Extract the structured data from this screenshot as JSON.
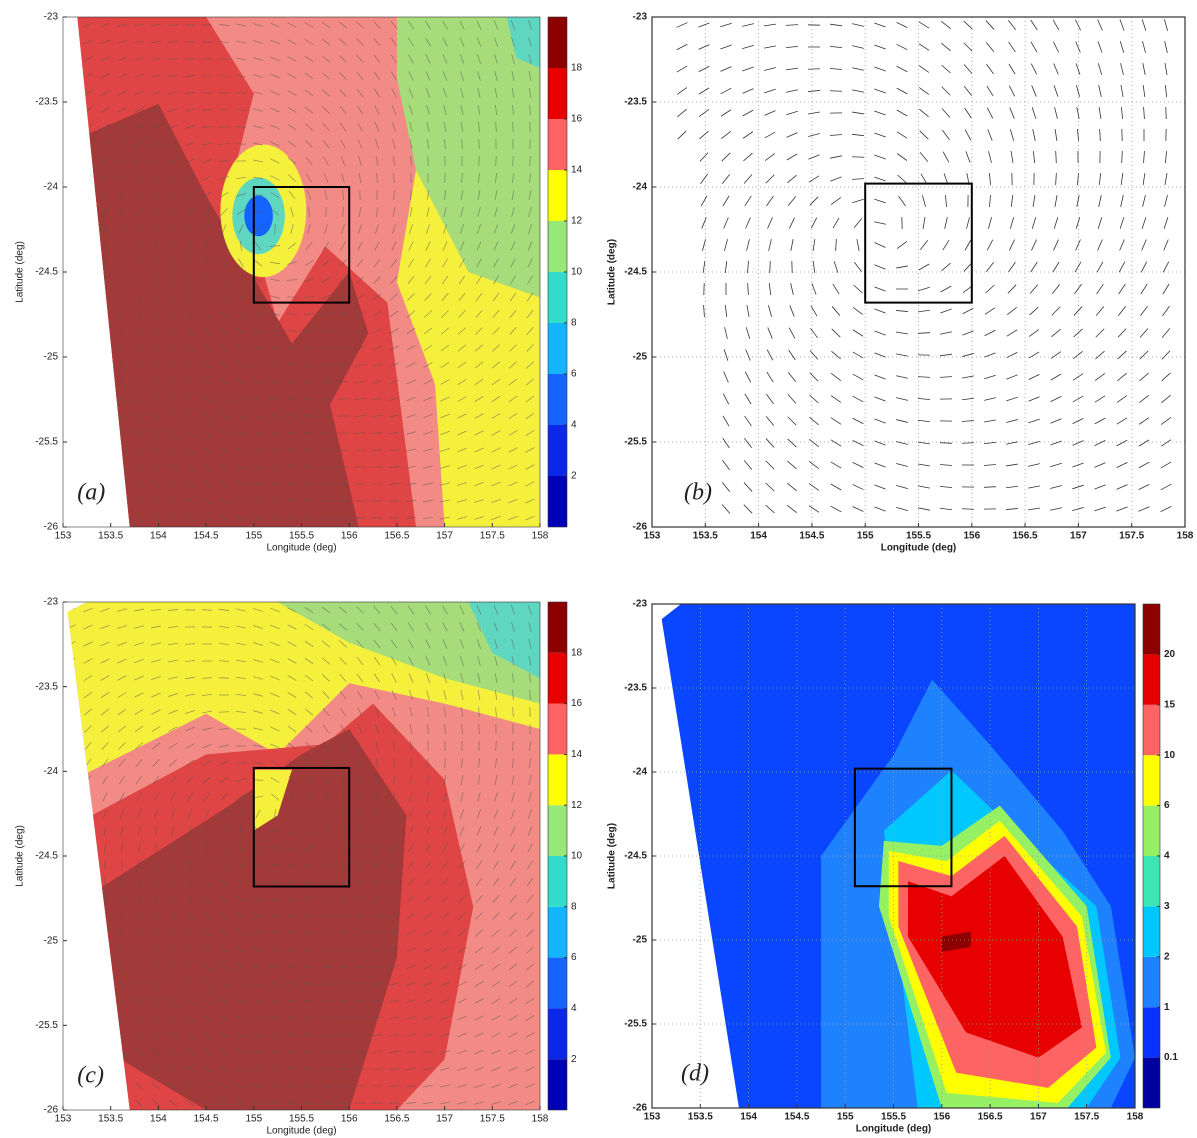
{
  "chart_data": [
    {
      "type": "heatmap-quiver",
      "panel_label": "(a)",
      "xlabel": "Longitude (deg)",
      "ylabel": "Latitude (deg)",
      "xlim": [
        153,
        158
      ],
      "ylim": [
        -26,
        -23
      ],
      "xticks": [
        153,
        153.5,
        154,
        154.5,
        155,
        155.5,
        156,
        156.5,
        157,
        157.5,
        158
      ],
      "yticks": [
        -23,
        -23.5,
        -24,
        -24.5,
        -25,
        -25.5,
        -26
      ],
      "box": {
        "x": [
          155,
          156
        ],
        "y": [
          -24.68,
          -24
        ]
      },
      "colorbar": {
        "lim": [
          0,
          20
        ],
        "ticks": [
          2,
          4,
          6,
          8,
          10,
          12,
          14,
          16,
          18
        ],
        "colors": [
          "#0000b4",
          "#0a28e6",
          "#1464ff",
          "#14b4ff",
          "#32dcc8",
          "#96e678",
          "#ffff00",
          "#ff6464",
          "#e60000",
          "#8c0000"
        ]
      }
    },
    {
      "type": "quiver",
      "panel_label": "(b)",
      "xlabel": "Longitude (deg)",
      "ylabel": "Latitude (deg)",
      "xlim": [
        153,
        158
      ],
      "ylim": [
        -26,
        -23
      ],
      "xticks": [
        153,
        153.5,
        154,
        154.5,
        155,
        155.5,
        156,
        156.5,
        157,
        157.5,
        158
      ],
      "yticks": [
        -23,
        -23.5,
        -24,
        -24.5,
        -25,
        -25.5,
        -26
      ],
      "box": {
        "x": [
          155,
          156
        ],
        "y": [
          -24.68,
          -23.98
        ]
      },
      "grid": true
    },
    {
      "type": "heatmap-quiver",
      "panel_label": "(c)",
      "xlabel": "Longitude (deg)",
      "ylabel": "Latitude (deg)",
      "xlim": [
        153,
        158
      ],
      "ylim": [
        -26,
        -23
      ],
      "xticks": [
        153,
        153.5,
        154,
        154.5,
        155,
        155.5,
        156,
        156.5,
        157,
        157.5,
        158
      ],
      "yticks": [
        -23,
        -23.5,
        -24,
        -24.5,
        -25,
        -25.5,
        -26
      ],
      "box": {
        "x": [
          155,
          156
        ],
        "y": [
          -24.68,
          -23.98
        ]
      },
      "colorbar": {
        "lim": [
          0,
          20
        ],
        "ticks": [
          2,
          4,
          6,
          8,
          10,
          12,
          14,
          16,
          18
        ],
        "colors": [
          "#0000b4",
          "#0a28e6",
          "#1464ff",
          "#14b4ff",
          "#32dcc8",
          "#96e678",
          "#ffff00",
          "#ff6464",
          "#e60000",
          "#8c0000"
        ]
      }
    },
    {
      "type": "heatmap",
      "panel_label": "(d)",
      "xlabel": "Longitude (deg)",
      "ylabel": "Latitude (deg)",
      "xlim": [
        153,
        158
      ],
      "ylim": [
        -26,
        -23
      ],
      "xticks": [
        153,
        153.5,
        154,
        154.5,
        155,
        155.5,
        156,
        156.5,
        157,
        157.5,
        158
      ],
      "yticks": [
        -23,
        -23.5,
        -24,
        -24.5,
        -25,
        -25.5,
        -26
      ],
      "box": {
        "x": [
          155.1,
          156.1
        ],
        "y": [
          -24.68,
          -23.98
        ]
      },
      "grid": true,
      "colorbar": {
        "labels": [
          0.1,
          1,
          2,
          3,
          4,
          6,
          10,
          15,
          20
        ],
        "colors": [
          "#0000a0",
          "#0a32ff",
          "#1e82ff",
          "#00c8ff",
          "#3ce6b4",
          "#96f064",
          "#ffff00",
          "#ff6464",
          "#e60000",
          "#8c0000"
        ]
      }
    }
  ]
}
